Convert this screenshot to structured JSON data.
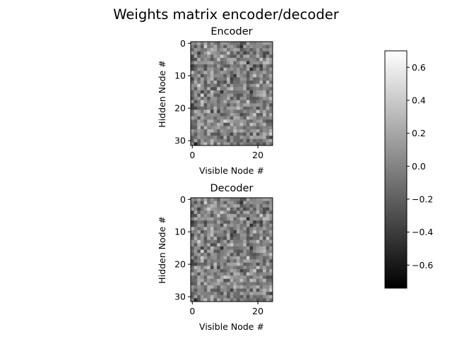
{
  "chart_data": {
    "type": "heatmap",
    "title": "Weights matrix encoder/decoder",
    "colormap": "gray",
    "colorbar": {
      "vmin": -0.74,
      "vmax": 0.7,
      "ticks": [
        0.6,
        0.4,
        0.2,
        0.0,
        -0.2,
        -0.4,
        -0.6
      ],
      "tick_labels": [
        "0.6",
        "0.4",
        "0.2",
        "0.0",
        "−0.2",
        "−0.4",
        "−0.6"
      ]
    },
    "panels": [
      {
        "title": "Encoder",
        "xlabel": "Visible Node #",
        "ylabel": "Hidden Node #",
        "rows": 32,
        "cols": 25,
        "xticks": [
          0,
          20
        ],
        "xtick_labels": [
          "0",
          "20"
        ],
        "yticks": [
          0,
          10,
          20,
          30
        ],
        "ytick_labels": [
          "0",
          "10",
          "20",
          "30"
        ]
      },
      {
        "title": "Decoder",
        "xlabel": "Visible Node #",
        "ylabel": "Hidden Node #",
        "rows": 32,
        "cols": 25,
        "xticks": [
          0,
          20
        ],
        "xtick_labels": [
          "0",
          "20"
        ],
        "yticks": [
          0,
          10,
          20,
          30
        ],
        "ytick_labels": [
          "0",
          "10",
          "20",
          "30"
        ]
      }
    ]
  }
}
